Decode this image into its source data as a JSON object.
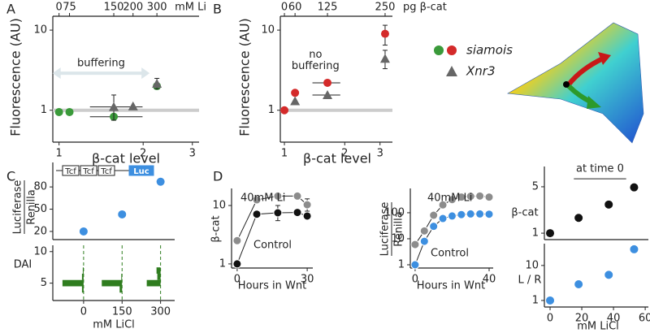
{
  "chart_data": [
    {
      "type": "scatter",
      "panel": "A",
      "ylabel": "Fluorescence (AU)",
      "xlabel": "β-cat level",
      "log_x": true,
      "log_y": true,
      "xlim": [
        0.95,
        3.17
      ],
      "ylim": [
        0.4,
        14.9
      ],
      "xticks": [
        1,
        2,
        3
      ],
      "yticks": [
        1,
        10
      ],
      "baseline": 1,
      "top_axis": {
        "label": "mM Li",
        "ticks": [
          0,
          75,
          150,
          200,
          300
        ],
        "positions": [
          1,
          1.09,
          1.57,
          1.84,
          2.24
        ]
      },
      "annotation": {
        "lines": [
          "buffering"
        ],
        "x": [
          1,
          2
        ],
        "y": 2.9
      },
      "series": [
        {
          "marker": "circle",
          "color": "#3a9a3a",
          "x": [
            1,
            1.09,
            1.57,
            2.24
          ],
          "values": [
            0.95,
            0.95,
            0.83,
            2.0
          ],
          "xerr": [
            null,
            null,
            [
              1.29,
              1.99
            ],
            null
          ]
        },
        {
          "marker": "triangle",
          "color": "#666666",
          "x": [
            1.57,
            1.84,
            2.24
          ],
          "values": [
            1.1,
            1.12,
            2.15
          ],
          "xerr": [
            [
              1.29,
              1.99
            ],
            null,
            null
          ],
          "yerr": [
            [
              0.75,
              1.55
            ],
            null,
            [
              1.85,
              2.5
            ]
          ]
        }
      ]
    },
    {
      "type": "scatter",
      "panel": "B",
      "ylabel": "Fluorescence (AU)",
      "xlabel": "β-cat level",
      "log_x": true,
      "log_y": true,
      "xlim": [
        0.954,
        3.46
      ],
      "ylim": [
        0.4,
        14.9
      ],
      "xticks": [
        1,
        2,
        3
      ],
      "yticks": [
        1,
        10
      ],
      "baseline": 1,
      "top_axis": {
        "label": "pg β-cat",
        "ticks": [
          0,
          60,
          125,
          250
        ],
        "positions": [
          1,
          1.13,
          1.64,
          3.18
        ]
      },
      "annotation": {
        "lines": [
          "no",
          "buffering"
        ],
        "x": 1.43,
        "y": 4.9
      },
      "series": [
        {
          "marker": "circle",
          "color": "#d42a2a",
          "x": [
            1,
            1.13,
            1.64,
            3.18
          ],
          "values": [
            1,
            1.65,
            2.2,
            9
          ],
          "xerr": [
            null,
            null,
            [
              1.38,
              1.9
            ],
            null
          ],
          "yerr": [
            null,
            null,
            null,
            [
              6.5,
              11.5
            ]
          ]
        },
        {
          "marker": "triangle",
          "color": "#666666",
          "x": [
            1.13,
            1.64,
            3.18
          ],
          "values": [
            1.3,
            1.55,
            4.4
          ],
          "xerr": [
            null,
            [
              1.38,
              1.9
            ],
            null
          ],
          "yerr": [
            null,
            null,
            [
              3.3,
              5.6
            ]
          ]
        }
      ]
    },
    {
      "type": "scatter",
      "panel": "C",
      "ylabel": [
        "Luciferase",
        "Renilla"
      ],
      "xlim": [
        -120,
        355
      ],
      "ylim": [
        9,
        113
      ],
      "yticks": [
        20,
        50,
        80
      ],
      "construct": [
        "Tcf",
        "Tcf",
        "Tcf",
        "Luc"
      ],
      "series": [
        {
          "marker": "circle",
          "color": "#3d8fe0",
          "x": [
            0,
            150,
            300
          ],
          "values": [
            20,
            43,
            87
          ]
        }
      ]
    },
    {
      "type": "distribution",
      "ylabel": "DAI",
      "xlabel": "mM LiCl",
      "xlim": [
        -120,
        355
      ],
      "ylim": [
        2.25,
        11
      ],
      "xticks": [
        0,
        150,
        300
      ],
      "yticks": [
        5,
        10
      ],
      "color": "#2f7d1f",
      "doses": [
        0,
        150,
        300
      ],
      "levels": [
        4,
        5,
        6,
        7
      ],
      "counts": [
        [
          2,
          26,
          2,
          1
        ],
        [
          3,
          25,
          1,
          0
        ],
        [
          0,
          17,
          4,
          5
        ]
      ]
    },
    {
      "type": "line",
      "panel": "D",
      "ylabel": "β-cat",
      "xlabel": "Hours in Wnt",
      "log_y": true,
      "xlim": [
        -2.4,
        32.4
      ],
      "ylim": [
        0.85,
        19.6
      ],
      "xticks": [
        0,
        30
      ],
      "yticks": [
        1,
        10
      ],
      "series": [
        {
          "name": "40mM Li",
          "marker": "circle",
          "color": "#8c8c8c",
          "x": [
            0,
            8.4,
            17.4,
            25.8,
            30
          ],
          "values": [
            2.5,
            12.5,
            14.5,
            14.5,
            10.3
          ],
          "yerr": [
            null,
            null,
            null,
            null,
            [
              8,
              13
            ]
          ]
        },
        {
          "name": "Control",
          "marker": "circle",
          "color": "#111111",
          "x": [
            0,
            8.4,
            17.4,
            25.8,
            30
          ],
          "values": [
            1,
            7.1,
            7.5,
            7.6,
            6.6
          ],
          "yerr": [
            null,
            null,
            [
              5.5,
              10
            ],
            null,
            null
          ]
        }
      ]
    },
    {
      "type": "line",
      "ylabel": [
        "Luciferase",
        "Renilla"
      ],
      "xlabel": "Hours in Wnt",
      "log_y": true,
      "xlim": [
        -2.6,
        42.2
      ],
      "ylim": [
        0.75,
        860
      ],
      "xticks": [
        0,
        40
      ],
      "yticks": [
        1,
        10,
        100
      ],
      "series": [
        {
          "name": "40mM Li",
          "marker": "circle",
          "color": "#8c8c8c",
          "x": [
            0,
            5,
            10,
            15,
            20,
            25,
            30,
            35,
            40
          ],
          "values": [
            6,
            20,
            80,
            200,
            320,
            400,
            430,
            440,
            400
          ]
        },
        {
          "name": "Control",
          "marker": "circle",
          "color": "#3d8fe0",
          "x": [
            0,
            5,
            10,
            15,
            20,
            25,
            30,
            35,
            40
          ],
          "values": [
            1,
            8,
            30,
            60,
            75,
            85,
            90,
            90,
            88
          ]
        }
      ]
    },
    {
      "type": "scatter",
      "ylabel": "β-cat",
      "log_y": true,
      "xlim": [
        -3.6,
        62
      ],
      "ylim": [
        0.8,
        10.1
      ],
      "yticks": [
        1,
        5
      ],
      "annotation": {
        "lines": [
          "at time 0"
        ],
        "x": [
          15,
          48
        ],
        "y": 6.6
      },
      "series": [
        {
          "marker": "circle",
          "color": "#111111",
          "x": [
            0,
            18,
            37,
            53
          ],
          "values": [
            1,
            1.7,
            2.7,
            4.9
          ]
        }
      ]
    },
    {
      "type": "scatter",
      "ylabel": "L / R",
      "xlabel": "mM LiCl",
      "log_y": true,
      "xlim": [
        -3.6,
        62
      ],
      "ylim": [
        0.65,
        42
      ],
      "xticks": [
        0,
        20,
        40,
        60
      ],
      "yticks": [
        1,
        10
      ],
      "series": [
        {
          "marker": "circle",
          "color": "#3d8fe0",
          "x": [
            0,
            18,
            37,
            53
          ],
          "values": [
            1,
            2.9,
            5.4,
            29
          ]
        }
      ]
    }
  ],
  "legend": [
    {
      "label": "siamois",
      "marker": "circle",
      "colors": [
        "#3a9a3a",
        "#d42a2a"
      ]
    },
    {
      "label": "Xnr3",
      "marker": "triangle",
      "colors": [
        "#666666"
      ]
    }
  ]
}
